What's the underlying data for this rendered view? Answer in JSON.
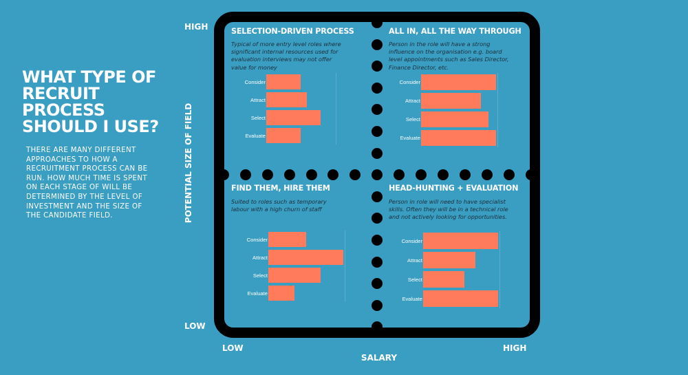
{
  "heading": "WHAT TYPE OF RECRUIT PROCESS SHOULD I USE?",
  "intro": "THERE ARE MANY DIFFERENT APPROACHES TO HOW A RECRUITMENT PROCESS CAN BE RUN. HOW MUCH TIME IS SPENT ON EACH STAGE OF WILL BE DETERMINED BY THE LEVEL OF INVESTMENT AND THE SIZE OF THE CANDIDATE FIELD.",
  "axes": {
    "y_title": "POTENTIAL SIZE  OF FIELD",
    "y_high": "HIGH",
    "y_low": "LOW",
    "x_title": "SALARY",
    "x_low": "LOW",
    "x_high": "HIGH"
  },
  "colors": {
    "background": "#3a9dc2",
    "bar": "#ff7b5c",
    "frame": "#000000"
  },
  "quadrants": [
    {
      "title": "SELECTION-DRIVEN PROCESS",
      "description": "Typical of more entry level roles where significant internal resources used for evaluation interviews may not offer value for money"
    },
    {
      "title": "ALL IN, ALL THE WAY THROUGH",
      "description": "Person in the role will have a strong influence on the organisation e.g. board level appointments such as Sales Director, Finance Director, etc."
    },
    {
      "title": "FIND THEM, HIRE THEM",
      "description": "Suited to roles such as temporary labour with a high churn of staff"
    },
    {
      "title": "HEAD-HUNTING + EVALUATION",
      "description": "Person in role will need to have specialist skills.  Often they will be in a technical role and not actively looking for opportunities."
    }
  ],
  "chart_data": [
    {
      "type": "bar",
      "orientation": "horizontal",
      "quadrant": "SELECTION-DRIVEN PROCESS",
      "categories": [
        "Consider",
        "Attract",
        "Select",
        "Evaluate"
      ],
      "values": [
        5,
        6,
        8,
        5
      ],
      "xlim": [
        0,
        10
      ]
    },
    {
      "type": "bar",
      "orientation": "horizontal",
      "quadrant": "ALL IN, ALL THE WAY THROUGH",
      "categories": [
        "Consider",
        "Attract",
        "Select",
        "Evaluate"
      ],
      "values": [
        10,
        8,
        9,
        10
      ],
      "xlim": [
        0,
        10
      ]
    },
    {
      "type": "bar",
      "orientation": "horizontal",
      "quadrant": "FIND THEM, HIRE THEM",
      "categories": [
        "Consider",
        "Attract",
        "Select",
        "Evaluate"
      ],
      "values": [
        5,
        10,
        7,
        3.5
      ],
      "xlim": [
        0,
        10
      ]
    },
    {
      "type": "bar",
      "orientation": "horizontal",
      "quadrant": "HEAD-HUNTING + EVALUATION",
      "categories": [
        "Consider",
        "Attract",
        "Select",
        "Evaluate"
      ],
      "values": [
        10,
        7,
        5.5,
        10
      ],
      "xlim": [
        0,
        10
      ]
    }
  ]
}
